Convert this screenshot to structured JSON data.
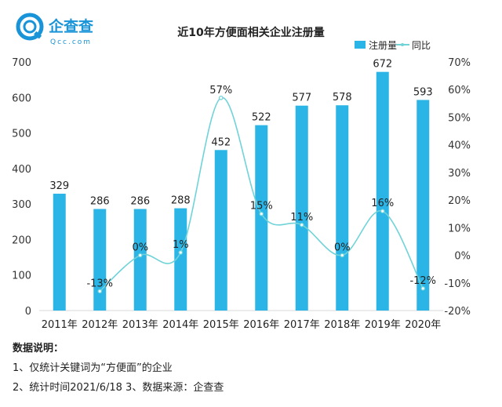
{
  "brand": {
    "name": "企查查",
    "sub": "Qcc.com",
    "color": "#1a94d8"
  },
  "chart_data": {
    "type": "bar",
    "title": "近10年方便面相关企业注册量",
    "categories": [
      "2011年",
      "2012年",
      "2013年",
      "2014年",
      "2015年",
      "2016年",
      "2017年",
      "2018年",
      "2019年",
      "2020年"
    ],
    "series": [
      {
        "name": "注册量",
        "type": "bar",
        "axis": "left",
        "color": "#2bb5e6",
        "values": [
          329,
          286,
          286,
          288,
          452,
          522,
          577,
          578,
          672,
          593
        ],
        "labels": [
          "329",
          "286",
          "286",
          "288",
          "452",
          "522",
          "577",
          "578",
          "672",
          "593"
        ]
      },
      {
        "name": "同比",
        "type": "line",
        "axis": "right",
        "color": "#6fd3d8",
        "values": [
          null,
          -13,
          0,
          1,
          57,
          15,
          11,
          0,
          16,
          -12
        ],
        "labels": [
          "",
          "-13%",
          "0%",
          "1%",
          "57%",
          "15%",
          "11%",
          "0%",
          "16%",
          "-12%"
        ]
      }
    ],
    "y_left": {
      "min": 0,
      "max": 700,
      "ticks": [
        "0",
        "100",
        "200",
        "300",
        "400",
        "500",
        "600",
        "700"
      ]
    },
    "y_right": {
      "min": -20,
      "max": 70,
      "ticks": [
        "-20%",
        "-10%",
        "0%",
        "10%",
        "20%",
        "30%",
        "40%",
        "50%",
        "60%",
        "70%"
      ]
    },
    "legend": "top-right",
    "grid": false
  },
  "notes": {
    "heading": "数据说明：",
    "line1": "1、仅统计关键词为“方便面”的企业",
    "line2": "2、统计时间2021/6/18   3、数据来源：企查查"
  }
}
